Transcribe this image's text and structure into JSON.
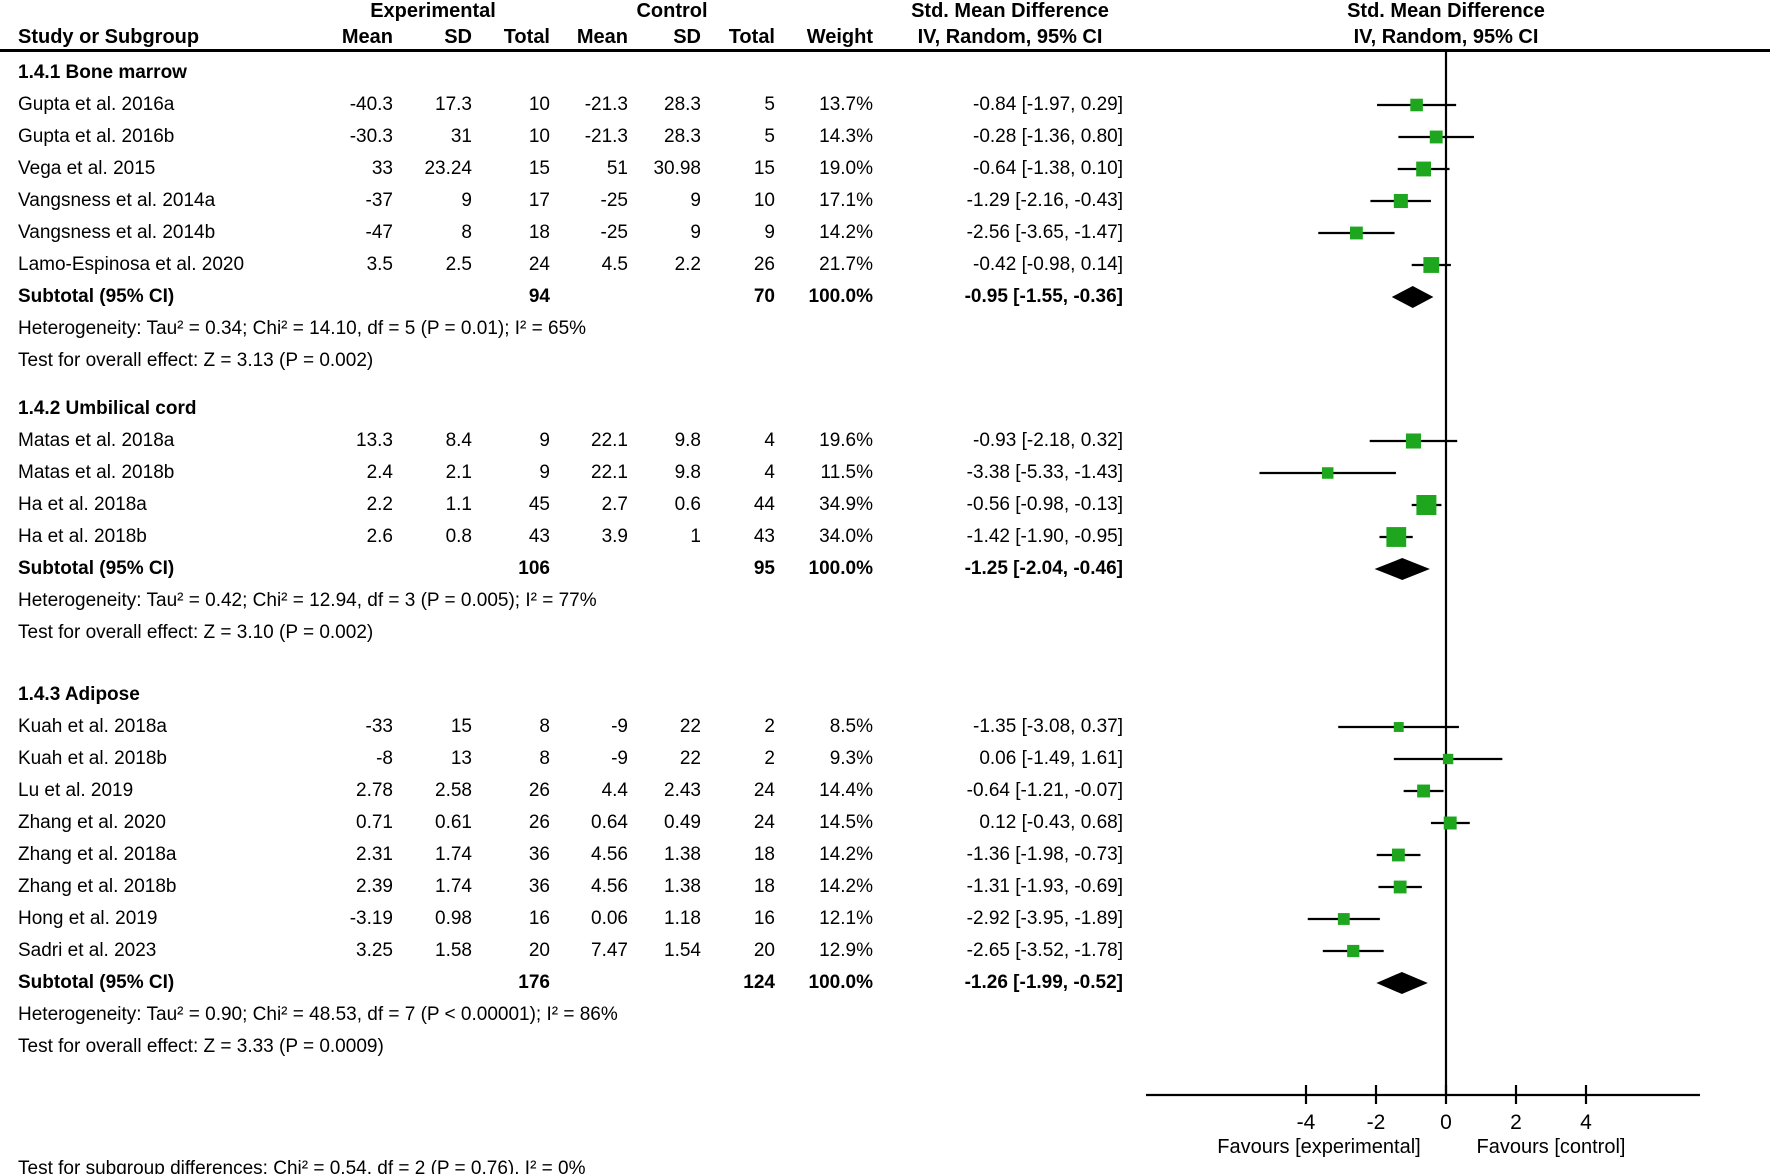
{
  "header": {
    "experimental": "Experimental",
    "control": "Control",
    "smd_left": "Std. Mean Difference",
    "smd_right": "Std. Mean Difference",
    "study": "Study or Subgroup",
    "mean_e": "Mean",
    "sd_e": "SD",
    "total_e": "Total",
    "mean_c": "Mean",
    "sd_c": "SD",
    "total_c": "Total",
    "weight": "Weight",
    "method_left": "IV, Random, 95% CI",
    "method_right": "IV, Random, 95% CI"
  },
  "colors": {
    "marker_green": "#1EA71E",
    "diamond_black": "#000000",
    "line_black": "#000000"
  },
  "chart_data": {
    "type": "forest",
    "effect_measure": "Std. Mean Difference, IV, Random, 95% CI",
    "axis": {
      "ticks": [
        -4,
        -2,
        0,
        2,
        4
      ],
      "favours_left": "Favours [experimental]",
      "favours_right": "Favours [control]"
    },
    "subgroups": [
      {
        "title": "1.4.1 Bone marrow",
        "studies": [
          {
            "name": "Gupta et al. 2016a",
            "mean_e": "-40.3",
            "sd_e": "17.3",
            "total_e": "10",
            "mean_c": "-21.3",
            "sd_c": "28.3",
            "total_c": "5",
            "weight": "13.7%",
            "ci_text": "-0.84 [-1.97, 0.29]",
            "est": -0.84,
            "lo": -1.97,
            "hi": 0.29,
            "weight_pct": 13.7
          },
          {
            "name": "Gupta et al. 2016b",
            "mean_e": "-30.3",
            "sd_e": "31",
            "total_e": "10",
            "mean_c": "-21.3",
            "sd_c": "28.3",
            "total_c": "5",
            "weight": "14.3%",
            "ci_text": "-0.28 [-1.36, 0.80]",
            "est": -0.28,
            "lo": -1.36,
            "hi": 0.8,
            "weight_pct": 14.3
          },
          {
            "name": "Vega et al. 2015",
            "mean_e": "33",
            "sd_e": "23.24",
            "total_e": "15",
            "mean_c": "51",
            "sd_c": "30.98",
            "total_c": "15",
            "weight": "19.0%",
            "ci_text": "-0.64 [-1.38, 0.10]",
            "est": -0.64,
            "lo": -1.38,
            "hi": 0.1,
            "weight_pct": 19.0
          },
          {
            "name": "Vangsness et al. 2014a",
            "mean_e": "-37",
            "sd_e": "9",
            "total_e": "17",
            "mean_c": "-25",
            "sd_c": "9",
            "total_c": "10",
            "weight": "17.1%",
            "ci_text": "-1.29 [-2.16, -0.43]",
            "est": -1.29,
            "lo": -2.16,
            "hi": -0.43,
            "weight_pct": 17.1
          },
          {
            "name": "Vangsness et al. 2014b",
            "mean_e": "-47",
            "sd_e": "8",
            "total_e": "18",
            "mean_c": "-25",
            "sd_c": "9",
            "total_c": "9",
            "weight": "14.2%",
            "ci_text": "-2.56 [-3.65, -1.47]",
            "est": -2.56,
            "lo": -3.65,
            "hi": -1.47,
            "weight_pct": 14.2
          },
          {
            "name": "Lamo-Espinosa et al. 2020",
            "mean_e": "3.5",
            "sd_e": "2.5",
            "total_e": "24",
            "mean_c": "4.5",
            "sd_c": "2.2",
            "total_c": "26",
            "weight": "21.7%",
            "ci_text": "-0.42 [-0.98, 0.14]",
            "est": -0.42,
            "lo": -0.98,
            "hi": 0.14,
            "weight_pct": 21.7
          }
        ],
        "subtotal": {
          "label": "Subtotal (95% CI)",
          "total_e": "94",
          "total_c": "70",
          "weight": "100.0%",
          "ci_text": "-0.95 [-1.55, -0.36]",
          "est": -0.95,
          "lo": -1.55,
          "hi": -0.36
        },
        "heterogeneity": "Heterogeneity: Tau² = 0.34; Chi² = 14.10, df = 5 (P = 0.01); I² = 65%",
        "overall_effect": "Test for overall effect: Z = 3.13 (P = 0.002)"
      },
      {
        "title": "1.4.2 Umbilical cord",
        "studies": [
          {
            "name": "Matas et al. 2018a",
            "mean_e": "13.3",
            "sd_e": "8.4",
            "total_e": "9",
            "mean_c": "22.1",
            "sd_c": "9.8",
            "total_c": "4",
            "weight": "19.6%",
            "ci_text": "-0.93 [-2.18, 0.32]",
            "est": -0.93,
            "lo": -2.18,
            "hi": 0.32,
            "weight_pct": 19.6
          },
          {
            "name": "Matas et al. 2018b",
            "mean_e": "2.4",
            "sd_e": "2.1",
            "total_e": "9",
            "mean_c": "22.1",
            "sd_c": "9.8",
            "total_c": "4",
            "weight": "11.5%",
            "ci_text": "-3.38 [-5.33, -1.43]",
            "est": -3.38,
            "lo": -5.33,
            "hi": -1.43,
            "weight_pct": 11.5
          },
          {
            "name": "Ha et al. 2018a",
            "mean_e": "2.2",
            "sd_e": "1.1",
            "total_e": "45",
            "mean_c": "2.7",
            "sd_c": "0.6",
            "total_c": "44",
            "weight": "34.9%",
            "ci_text": "-0.56 [-0.98, -0.13]",
            "est": -0.56,
            "lo": -0.98,
            "hi": -0.13,
            "weight_pct": 34.9
          },
          {
            "name": "Ha et al. 2018b",
            "mean_e": "2.6",
            "sd_e": "0.8",
            "total_e": "43",
            "mean_c": "3.9",
            "sd_c": "1",
            "total_c": "43",
            "weight": "34.0%",
            "ci_text": "-1.42 [-1.90, -0.95]",
            "est": -1.42,
            "lo": -1.9,
            "hi": -0.95,
            "weight_pct": 34.0
          }
        ],
        "subtotal": {
          "label": "Subtotal (95% CI)",
          "total_e": "106",
          "total_c": "95",
          "weight": "100.0%",
          "ci_text": "-1.25 [-2.04, -0.46]",
          "est": -1.25,
          "lo": -2.04,
          "hi": -0.46
        },
        "heterogeneity": "Heterogeneity: Tau² = 0.42; Chi² = 12.94, df = 3 (P = 0.005); I² = 77%",
        "overall_effect": "Test for overall effect: Z = 3.10 (P = 0.002)"
      },
      {
        "title": "1.4.3 Adipose",
        "studies": [
          {
            "name": "Kuah et al. 2018a",
            "mean_e": "-33",
            "sd_e": "15",
            "total_e": "8",
            "mean_c": "-9",
            "sd_c": "22",
            "total_c": "2",
            "weight": "8.5%",
            "ci_text": "-1.35 [-3.08, 0.37]",
            "est": -1.35,
            "lo": -3.08,
            "hi": 0.37,
            "weight_pct": 8.5
          },
          {
            "name": "Kuah et al. 2018b",
            "mean_e": "-8",
            "sd_e": "13",
            "total_e": "8",
            "mean_c": "-9",
            "sd_c": "22",
            "total_c": "2",
            "weight": "9.3%",
            "ci_text": "0.06 [-1.49, 1.61]",
            "est": 0.06,
            "lo": -1.49,
            "hi": 1.61,
            "weight_pct": 9.3
          },
          {
            "name": "Lu et al. 2019",
            "mean_e": "2.78",
            "sd_e": "2.58",
            "total_e": "26",
            "mean_c": "4.4",
            "sd_c": "2.43",
            "total_c": "24",
            "weight": "14.4%",
            "ci_text": "-0.64 [-1.21, -0.07]",
            "est": -0.64,
            "lo": -1.21,
            "hi": -0.07,
            "weight_pct": 14.4
          },
          {
            "name": "Zhang et al. 2020",
            "mean_e": "0.71",
            "sd_e": "0.61",
            "total_e": "26",
            "mean_c": "0.64",
            "sd_c": "0.49",
            "total_c": "24",
            "weight": "14.5%",
            "ci_text": "0.12 [-0.43, 0.68]",
            "est": 0.12,
            "lo": -0.43,
            "hi": 0.68,
            "weight_pct": 14.5
          },
          {
            "name": "Zhang et al. 2018a",
            "mean_e": "2.31",
            "sd_e": "1.74",
            "total_e": "36",
            "mean_c": "4.56",
            "sd_c": "1.38",
            "total_c": "18",
            "weight": "14.2%",
            "ci_text": "-1.36 [-1.98, -0.73]",
            "est": -1.36,
            "lo": -1.98,
            "hi": -0.73,
            "weight_pct": 14.2
          },
          {
            "name": "Zhang et al. 2018b",
            "mean_e": "2.39",
            "sd_e": "1.74",
            "total_e": "36",
            "mean_c": "4.56",
            "sd_c": "1.38",
            "total_c": "18",
            "weight": "14.2%",
            "ci_text": "-1.31 [-1.93, -0.69]",
            "est": -1.31,
            "lo": -1.93,
            "hi": -0.69,
            "weight_pct": 14.2
          },
          {
            "name": "Hong et al. 2019",
            "mean_e": "-3.19",
            "sd_e": "0.98",
            "total_e": "16",
            "mean_c": "0.06",
            "sd_c": "1.18",
            "total_c": "16",
            "weight": "12.1%",
            "ci_text": "-2.92 [-3.95, -1.89]",
            "est": -2.92,
            "lo": -3.95,
            "hi": -1.89,
            "weight_pct": 12.1
          },
          {
            "name": "Sadri et al. 2023",
            "mean_e": "3.25",
            "sd_e": "1.58",
            "total_e": "20",
            "mean_c": "7.47",
            "sd_c": "1.54",
            "total_c": "20",
            "weight": "12.9%",
            "ci_text": "-2.65 [-3.52, -1.78]",
            "est": -2.65,
            "lo": -3.52,
            "hi": -1.78,
            "weight_pct": 12.9
          }
        ],
        "subtotal": {
          "label": "Subtotal (95% CI)",
          "total_e": "176",
          "total_c": "124",
          "weight": "100.0%",
          "ci_text": "-1.26 [-1.99, -0.52]",
          "est": -1.26,
          "lo": -1.99,
          "hi": -0.52
        },
        "heterogeneity": "Heterogeneity: Tau² = 0.90; Chi² = 48.53, df = 7 (P < 0.00001); I² = 86%",
        "overall_effect": "Test for overall effect: Z = 3.33 (P = 0.0009)"
      }
    ],
    "footer": "Test for subgroup differences: Chi² = 0.54, df = 2 (P = 0.76), I² = 0%"
  }
}
